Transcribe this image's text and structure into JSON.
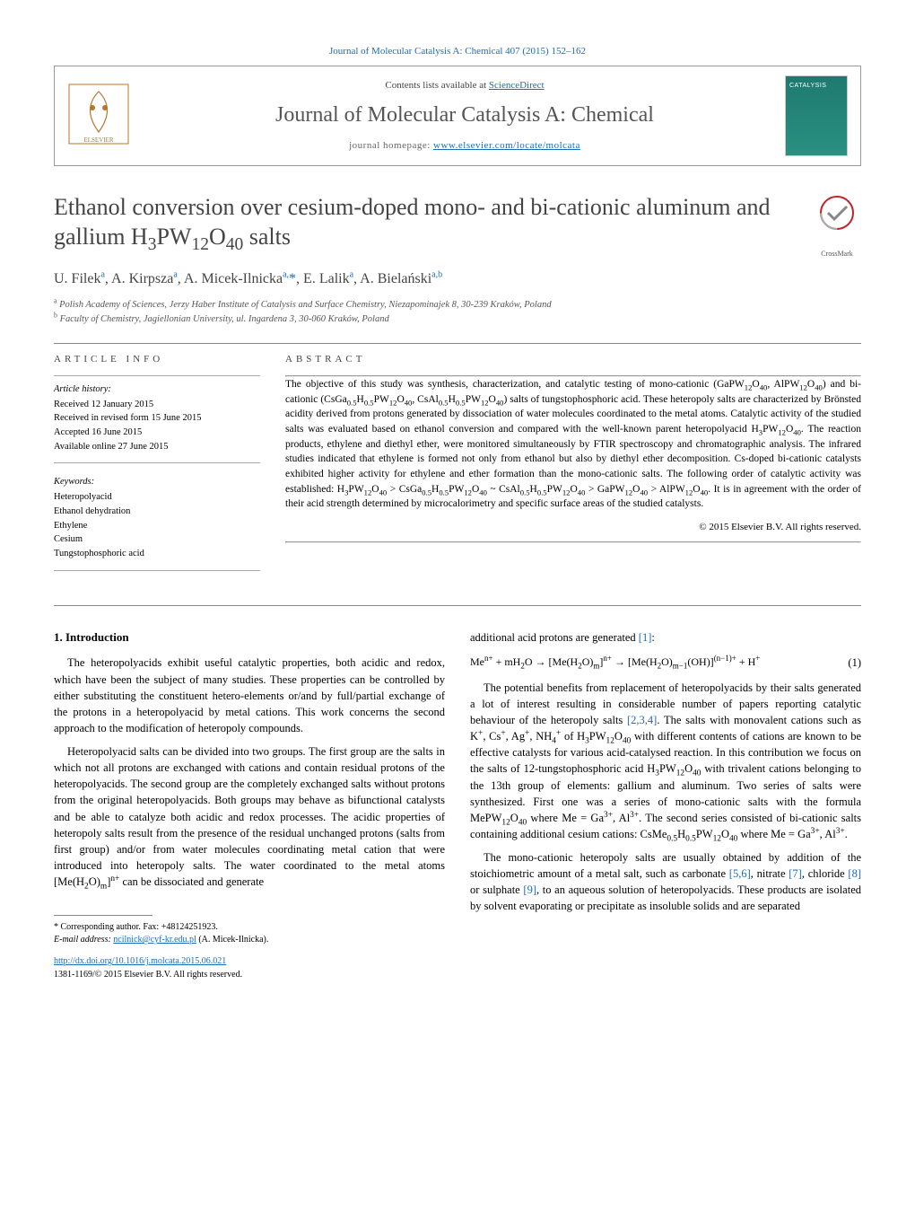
{
  "top_link": "Journal of Molecular Catalysis A: Chemical 407 (2015) 152–162",
  "header": {
    "contents_prefix": "Contents lists available at ",
    "contents_link": "ScienceDirect",
    "journal": "Journal of Molecular Catalysis A: Chemical",
    "homepage_prefix": "journal homepage: ",
    "homepage_link": "www.elsevier.com/locate/molcata"
  },
  "title_html": "Ethanol conversion over cesium-doped mono- and bi-cationic aluminum and gallium H<sub>3</sub>PW<sub>12</sub>O<sub>40</sub> salts",
  "crossmark_label": "CrossMark",
  "authors_html": "U. Filek<sup>a</sup>, A. Kirpsza<sup>a</sup>, A. Micek-Ilnicka<sup>a,</sup><span class=\"star\">*</span>, E. Lalik<sup>a</sup>, A. Bielański<sup>a,b</sup>",
  "affiliations": [
    {
      "sup": "a",
      "text": "Polish Academy of Sciences, Jerzy Haber Institute of Catalysis and Surface Chemistry, Niezapominajek 8, 30-239 Kraków, Poland"
    },
    {
      "sup": "b",
      "text": "Faculty of Chemistry, Jagiellonian University, ul. Ingardena 3, 30-060 Kraków, Poland"
    }
  ],
  "article_info_label": "article info",
  "abstract_label": "abstract",
  "history": {
    "head": "Article history:",
    "items": [
      "Received 12 January 2015",
      "Received in revised form 15 June 2015",
      "Accepted 16 June 2015",
      "Available online 27 June 2015"
    ]
  },
  "keywords": {
    "head": "Keywords:",
    "items": [
      "Heteropolyacid",
      "Ethanol dehydration",
      "Ethylene",
      "Cesium",
      "Tungstophosphoric acid"
    ]
  },
  "abstract_html": "The objective of this study was synthesis, characterization, and catalytic testing of mono-cationic (GaPW<sub>12</sub>O<sub>40</sub>, AlPW<sub>12</sub>O<sub>40</sub>) and bi-cationic (CsGa<sub>0.5</sub>H<sub>0.5</sub>PW<sub>12</sub>O<sub>40</sub>, CsAl<sub>0.5</sub>H<sub>0.5</sub>PW<sub>12</sub>O<sub>40</sub>) salts of tungstophosphoric acid. These heteropoly salts are characterized by Brönsted acidity derived from protons generated by dissociation of water molecules coordinated to the metal atoms. Catalytic activity of the studied salts was evaluated based on ethanol conversion and compared with the well-known parent heteropolyacid H<sub>3</sub>PW<sub>12</sub>O<sub>40</sub>. The reaction products, ethylene and diethyl ether, were monitored simultaneously by FTIR spectroscopy and chromatographic analysis. The infrared studies indicated that ethylene is formed not only from ethanol but also by diethyl ether decomposition. Cs-doped bi-cationic catalysts exhibited higher activity for ethylene and ether formation than the mono-cationic salts. The following order of catalytic activity was established: H<sub>3</sub>PW<sub>12</sub>O<sub>40</sub> &gt; CsGa<sub>0.5</sub>H<sub>0.5</sub>PW<sub>12</sub>O<sub>40</sub> ~ CsAl<sub>0.5</sub>H<sub>0.5</sub>PW<sub>12</sub>O<sub>40</sub> &gt; GaPW<sub>12</sub>O<sub>40</sub> &gt; AlPW<sub>12</sub>O<sub>40</sub>. It is in agreement with the order of their acid strength determined by microcalorimetry and specific surface areas of the studied catalysts.",
  "copyright": "© 2015 Elsevier B.V. All rights reserved.",
  "section1": {
    "heading": "1. Introduction",
    "p1": "The heteropolyacids exhibit useful catalytic properties, both acidic and redox, which have been the subject of many studies. These properties can be controlled by either substituting the constituent hetero-elements or/and by full/partial exchange of the protons in a heteropolyacid by metal cations. This work concerns the second approach to the modification of heteropoly compounds.",
    "p2_html": "Heteropolyacid salts can be divided into two groups. The first group are the salts in which not all protons are exchanged with cations and contain residual protons of the heteropolyacids. The second group are the completely exchanged salts without protons from the original heteropolyacids. Both groups may behave as bifunctional catalysts and be able to catalyze both acidic and redox processes. The acidic properties of heteropoly salts result from the presence of the residual unchanged protons (salts from first group) and/or from water molecules coordinating metal cation that were introduced into heteropoly salts. The water coordinated to the metal atoms [Me(H<sub>2</sub>O)<sub>m</sub>]<sup>n+</sup> can be dissociated and generate"
  },
  "col2": {
    "lead_html": "additional acid protons are generated <span class=\"ref-link\">[1]</span>:",
    "eq_html": "Me<sup>n+</sup> + mH<sub>2</sub>O → [Me(H<sub>2</sub>O)<sub>m</sub>]<sup>n+</sup> → [Me(H<sub>2</sub>O)<sub>m−1</sub>(OH)]<sup>(n−1)+</sup> + H<sup>+</sup>",
    "eq_num": "(1)",
    "p1_html": "The potential benefits from replacement of heteropolyacids by their salts generated a lot of interest resulting in considerable number of papers reporting catalytic behaviour of the heteropoly salts <span class=\"ref-link\">[2,3,4]</span>. The salts with monovalent cations such as K<sup>+</sup>, Cs<sup>+</sup>, Ag<sup>+</sup>, NH<sub>4</sub><sup>+</sup> of H<sub>3</sub>PW<sub>12</sub>O<sub>40</sub> with different contents of cations are known to be effective catalysts for various acid-catalysed reaction. In this contribution we focus on the salts of 12-tungstophosphoric acid H<sub>3</sub>PW<sub>12</sub>O<sub>40</sub> with trivalent cations belonging to the 13th group of elements: gallium and aluminum. Two series of salts were synthesized. First one was a series of mono-cationic salts with the formula MePW<sub>12</sub>O<sub>40</sub> where Me = Ga<sup>3+</sup>, Al<sup>3+</sup>. The second series consisted of bi-cationic salts containing additional cesium cations: CsMe<sub>0.5</sub>H<sub>0.5</sub>PW<sub>12</sub>O<sub>40</sub> where Me = Ga<sup>3+</sup>, Al<sup>3+</sup>.",
    "p2_html": "The mono-cationic heteropoly salts are usually obtained by addition of the stoichiometric amount of a metal salt, such as carbonate <span class=\"ref-link\">[5,6]</span>, nitrate <span class=\"ref-link\">[7]</span>, chloride <span class=\"ref-link\">[8]</span> or sulphate <span class=\"ref-link\">[9]</span>, to an aqueous solution of heteropolyacids. These products are isolated by solvent evaporating or precipitate as insoluble solids and are separated"
  },
  "footnotes": {
    "corr": "* Corresponding author. Fax: +48124251923.",
    "email_label": "E-mail address: ",
    "email": "ncilnick@cyf-kr.edu.pl",
    "email_who": " (A. Micek-Ilnicka)."
  },
  "footer": {
    "doi": "http://dx.doi.org/10.1016/j.molcata.2015.06.021",
    "issn": "1381-1169/© 2015 Elsevier B.V. All rights reserved."
  },
  "colors": {
    "link": "#1a6bb8",
    "text": "#000000",
    "muted": "#555555",
    "rule": "#888888"
  }
}
